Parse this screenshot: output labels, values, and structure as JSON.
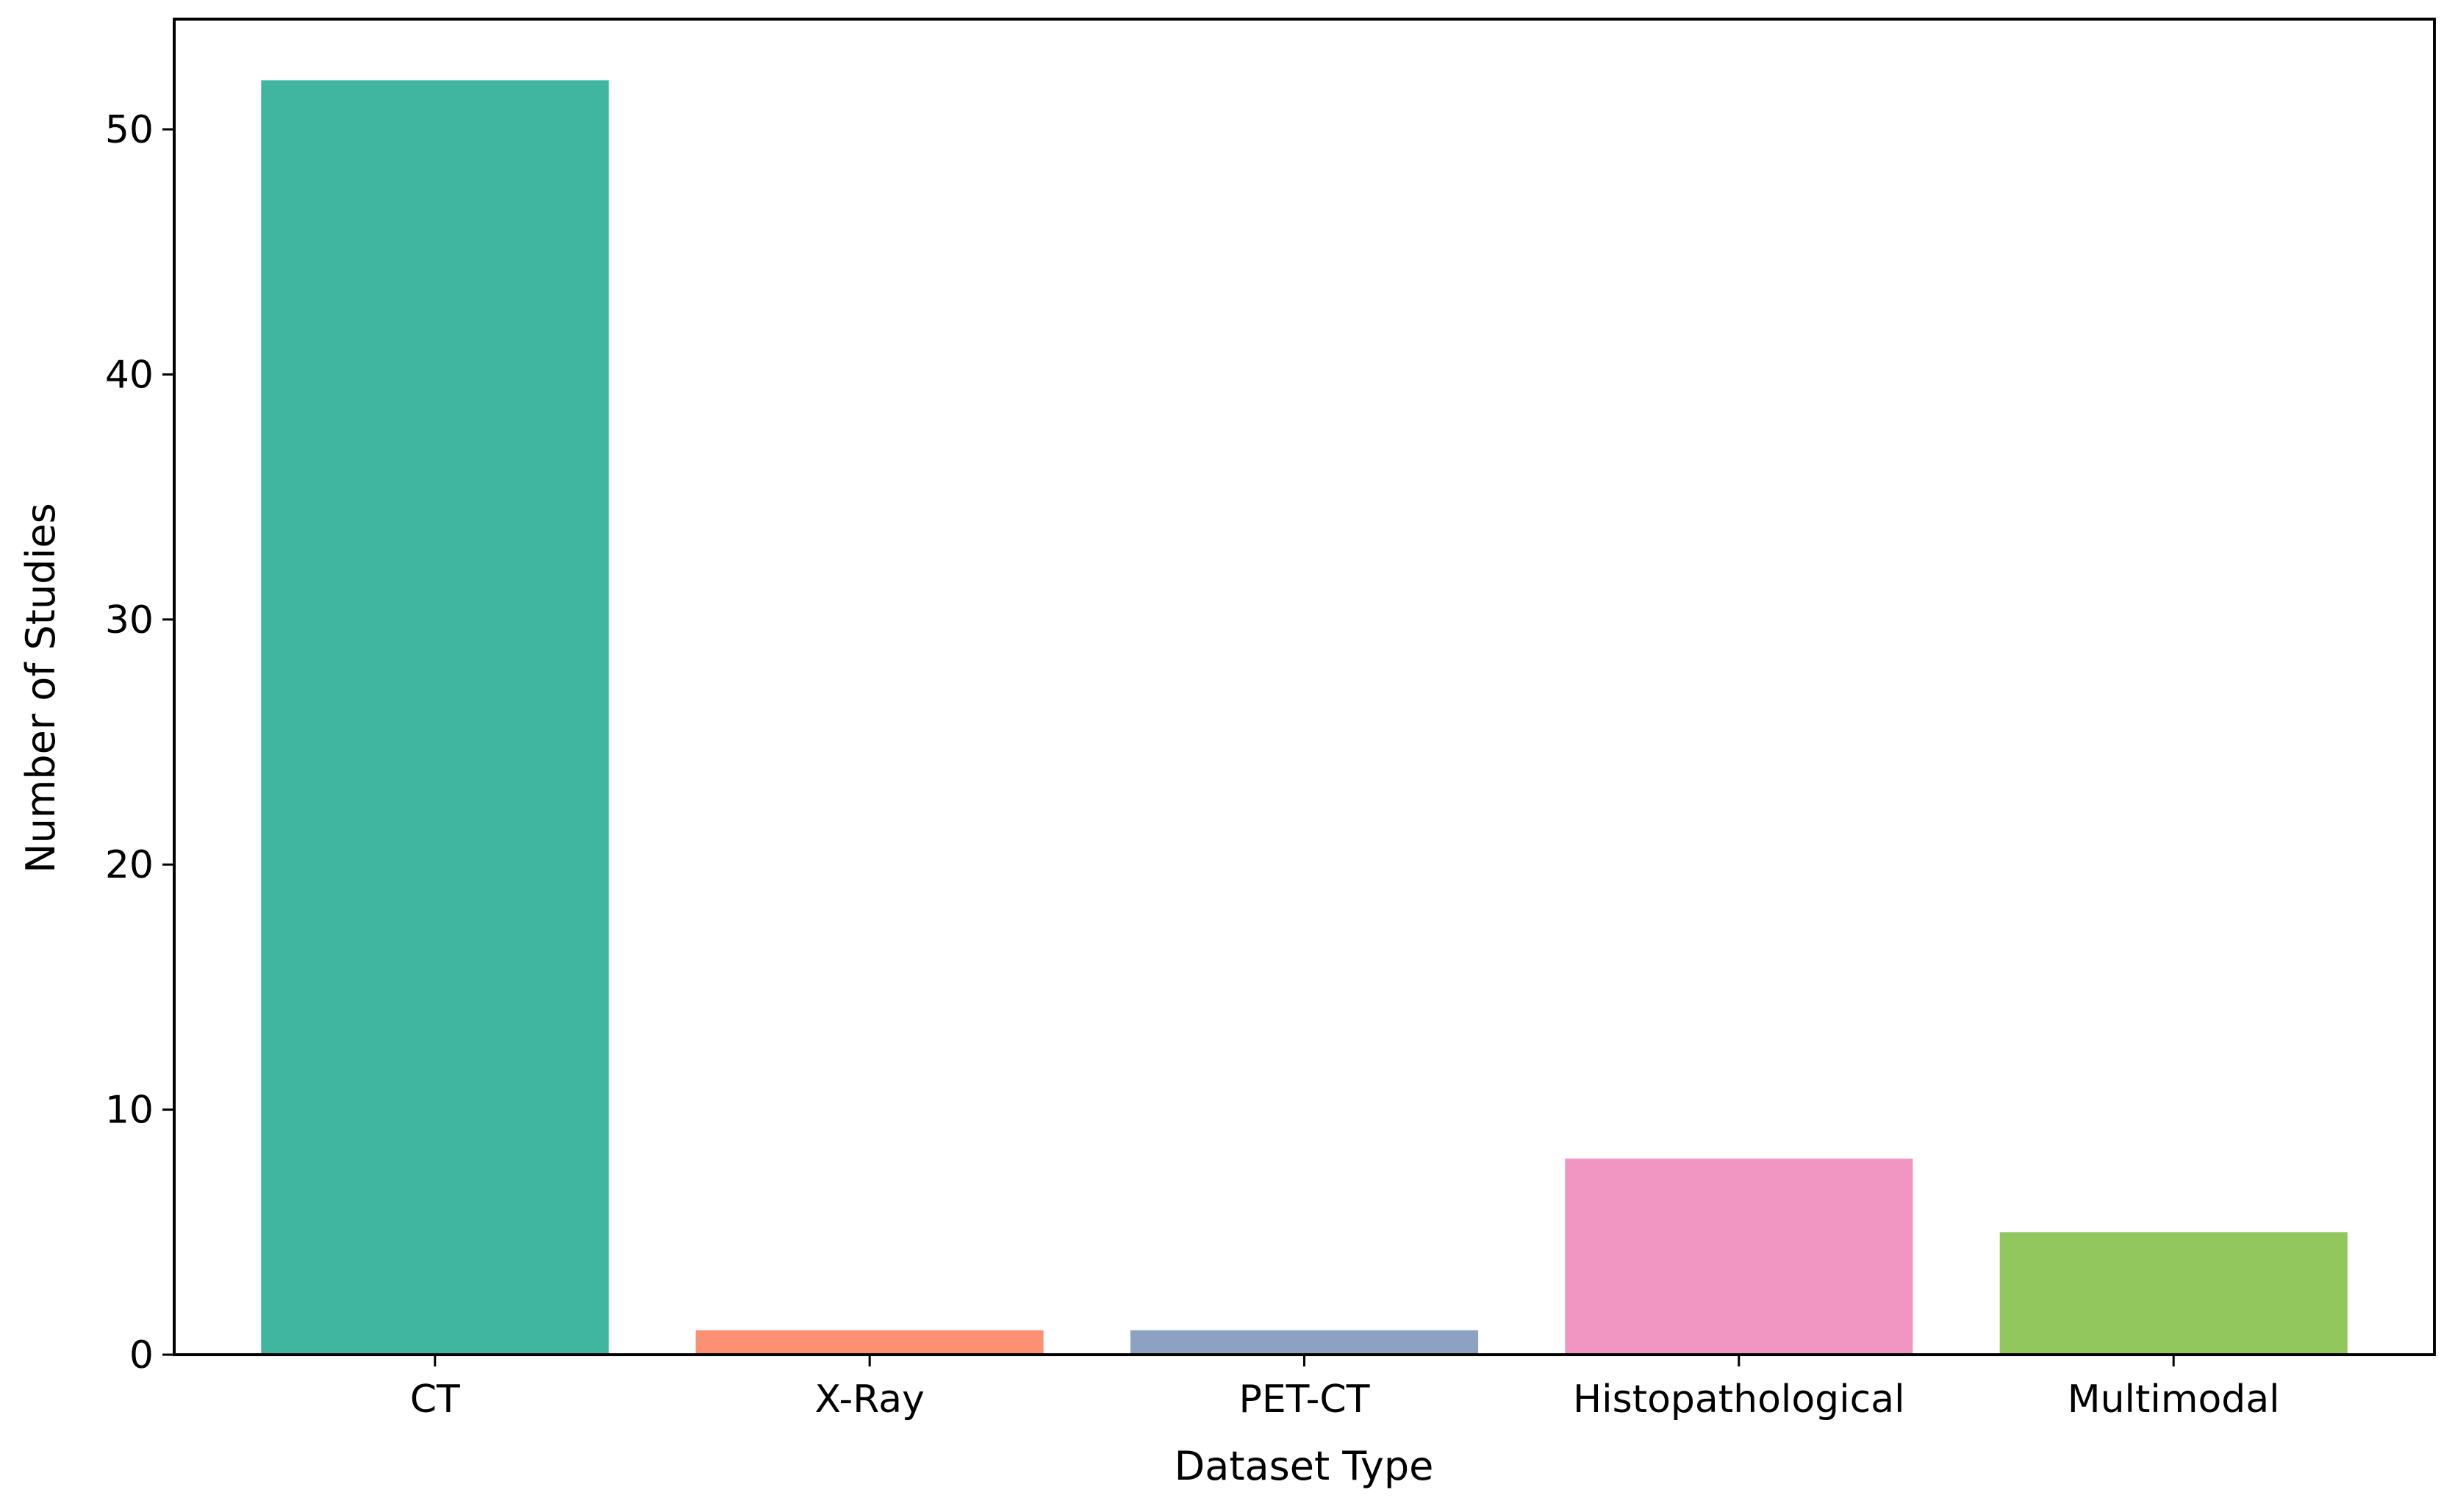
{
  "chart_data": {
    "type": "bar",
    "title": "",
    "xlabel": "Dataset Type",
    "ylabel": "Number of Studies",
    "categories": [
      "CT",
      "X-Ray",
      "PET-CT",
      "Histopathological",
      "Multimodal"
    ],
    "values": [
      52,
      1,
      1,
      8,
      5
    ],
    "colors": [
      "#40b6a1",
      "#fb9072",
      "#8da1c3",
      "#f196c3",
      "#91c75c"
    ],
    "ylim": [
      0,
      54.5
    ],
    "yticks": [
      0,
      10,
      20,
      30,
      40,
      50
    ],
    "grid": false,
    "legend": "none"
  }
}
